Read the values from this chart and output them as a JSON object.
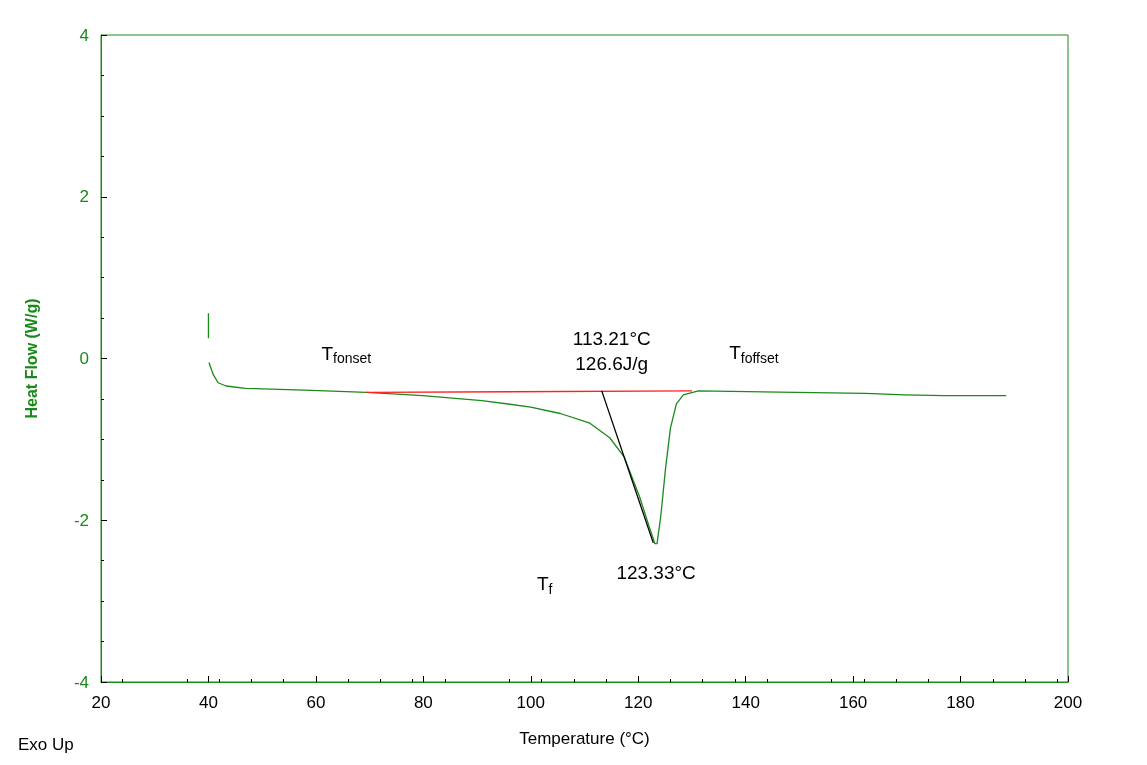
{
  "chart_data": {
    "type": "line",
    "xlabel": "Temperature (°C)",
    "ylabel": "Heat Flow (W/g)",
    "xlim": [
      20,
      200
    ],
    "xticks": [
      20,
      40,
      60,
      80,
      100,
      120,
      140,
      160,
      180,
      200
    ],
    "ylim": [
      -4,
      4
    ],
    "yticks": [
      -4,
      -2,
      0,
      2,
      4
    ],
    "grid": false,
    "series": [
      {
        "color": "#1a8a1a",
        "x": [
          40,
          40,
          40.05,
          40.1,
          40.9,
          41.8,
          43.3,
          46.9,
          57.9,
          69.4,
          79.9,
          90.9,
          100,
          105.5,
          111,
          114.7,
          117.4,
          120.2,
          122,
          123.1,
          123.5,
          124.2,
          125.1,
          126,
          127.1,
          128.4,
          131.2,
          149.5,
          162.3,
          169.6,
          176.9,
          188.5
        ],
        "values": [
          0.56,
          0.25,
          null,
          -0.05,
          -0.2,
          -0.3,
          -0.34,
          -0.37,
          -0.39,
          -0.42,
          -0.46,
          -0.52,
          -0.6,
          -0.68,
          -0.8,
          -0.98,
          -1.22,
          -1.7,
          -2.07,
          -2.29,
          -2.29,
          -1.95,
          -1.35,
          -0.86,
          -0.56,
          -0.45,
          -0.4,
          -0.42,
          -0.43,
          -0.45,
          -0.46,
          -0.46
        ]
      },
      {
        "color": "#ff2020",
        "x": [
          69.4,
          130
        ],
        "values": [
          -0.42,
          -0.4
        ]
      },
      {
        "color": "#000000",
        "x": [
          113.21,
          122.8
        ],
        "values": [
          -0.4,
          -2.28
        ]
      }
    ],
    "annotations": [
      {
        "text": "T$_{fonset}$",
        "x": 69.4,
        "y": -0.42
      },
      {
        "text": "113.21°C\n126.6J/g",
        "x": 113.21,
        "y": -0.4
      },
      {
        "text": "T$_{foffset}$",
        "x": 130,
        "y": -0.4
      },
      {
        "text": "123.33°C",
        "x": 123.33,
        "y": -2.29
      },
      "T$_{f}$",
      "Exo Up"
    ]
  }
}
